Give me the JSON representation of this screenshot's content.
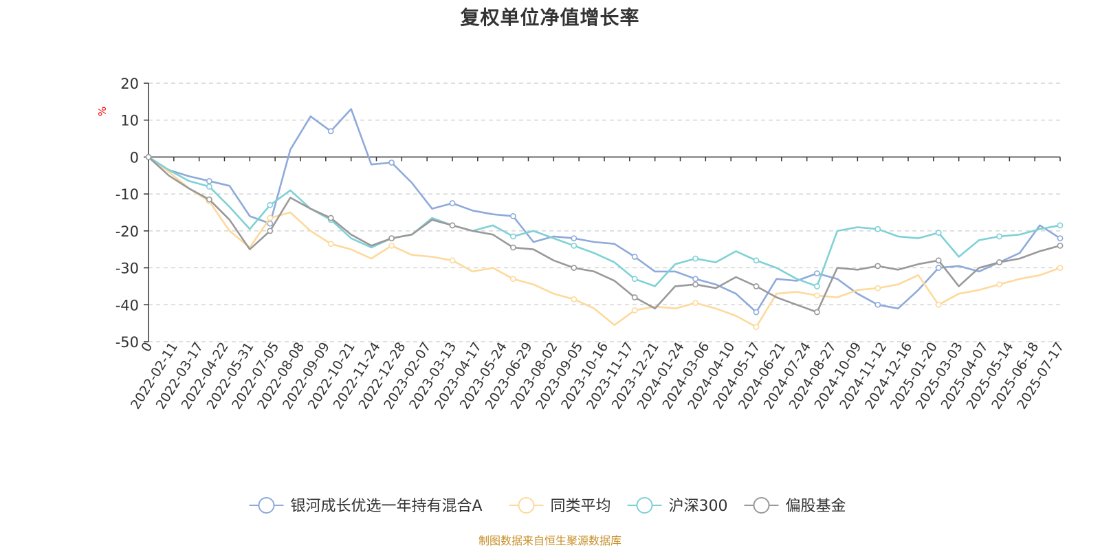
{
  "chart_data": {
    "type": "line",
    "title": "复权单位净值增长率",
    "ylabel": "%",
    "ylim": [
      -50,
      20
    ],
    "yticks": [
      20,
      10,
      0,
      -10,
      -20,
      -30,
      -40,
      -50
    ],
    "grid": true,
    "legend_position": "bottom-center",
    "x_tick_labels": [
      "0",
      "2022-02-11",
      "2022-03-17",
      "2022-04-22",
      "2022-05-31",
      "2022-07-05",
      "2022-08-08",
      "2022-09-09",
      "2022-10-21",
      "2022-11-24",
      "2022-12-28",
      "2023-02-07",
      "2023-03-13",
      "2023-04-17",
      "2023-05-24",
      "2023-06-29",
      "2023-08-02",
      "2023-09-05",
      "2023-10-16",
      "2023-11-17",
      "2023-12-21",
      "2024-01-24",
      "2024-03-06",
      "2024-04-10",
      "2024-05-17",
      "2024-06-21",
      "2024-07-24",
      "2024-08-27",
      "2024-10-09",
      "2024-11-12",
      "2024-12-16",
      "2025-01-20",
      "2025-03-03",
      "2025-04-07",
      "2025-05-14",
      "2025-06-18",
      "2025-07-17"
    ],
    "series": [
      {
        "name": "银河成长优选一年持有混合A",
        "color": "#8eaadb",
        "values": [
          0,
          -3.5,
          -5.2,
          -6.5,
          -7.8,
          -16,
          -18,
          2,
          11,
          7,
          13,
          -2,
          -1.5,
          -7,
          -14,
          -12.5,
          -14.5,
          -15.5,
          -16,
          -23,
          -21.5,
          -22,
          -23,
          -23.5,
          -27,
          -31,
          -31,
          -33,
          -34.5,
          -37,
          -42,
          -33,
          -33.5,
          -31.5,
          -33,
          -37,
          -40,
          -41,
          -36,
          -30,
          -29.5,
          -31,
          -28.5,
          -26,
          -18.5,
          -22
        ]
      },
      {
        "name": "同类平均",
        "color": "#fdd99b",
        "values": [
          0,
          -4,
          -8.5,
          -12,
          -20,
          -24.5,
          -16.5,
          -15,
          -20,
          -23.5,
          -25,
          -27.5,
          -24,
          -26.5,
          -27,
          -28,
          -31,
          -30,
          -33,
          -34.5,
          -37,
          -38.5,
          -41,
          -45.5,
          -41.5,
          -40.5,
          -41,
          -39.5,
          -41,
          -43,
          -46,
          -37,
          -36.5,
          -37.5,
          -38,
          -36,
          -35.5,
          -34.5,
          -32,
          -40,
          -37,
          -36,
          -34.5,
          -33,
          -32,
          -30
        ]
      },
      {
        "name": "沪深300",
        "color": "#7fd1d6",
        "values": [
          0,
          -3.5,
          -6.5,
          -8,
          -13.5,
          -19.5,
          -13,
          -9,
          -14,
          -17,
          -22,
          -24.5,
          -22,
          -21,
          -16.5,
          -18.5,
          -20,
          -18.5,
          -21.5,
          -20,
          -22,
          -24,
          -26,
          -28.5,
          -33,
          -35,
          -29,
          -27.5,
          -28.5,
          -25.5,
          -28,
          -30,
          -33,
          -35,
          -20,
          -19,
          -19.5,
          -21.5,
          -22,
          -20.5,
          -27,
          -22.5,
          -21.5,
          -21,
          -19.5,
          -18.5
        ]
      },
      {
        "name": "偏股基金",
        "color": "#999999",
        "values": [
          0,
          -5,
          -8.5,
          -11.5,
          -17,
          -25,
          -20,
          -11,
          -14,
          -16.5,
          -21,
          -24,
          -22,
          -21,
          -17,
          -18.5,
          -20,
          -21,
          -24.5,
          -25,
          -28,
          -30,
          -31,
          -33.5,
          -38,
          -41,
          -35,
          -34.5,
          -35.5,
          -32.5,
          -35,
          -38,
          -40,
          -42,
          -30,
          -30.5,
          -29.5,
          -30.5,
          -29,
          -28,
          -35,
          -30,
          -28.5,
          -27.5,
          -25.5,
          -24
        ]
      }
    ]
  },
  "footer": {
    "source_text": "制图数据来自恒生聚源数据库"
  }
}
